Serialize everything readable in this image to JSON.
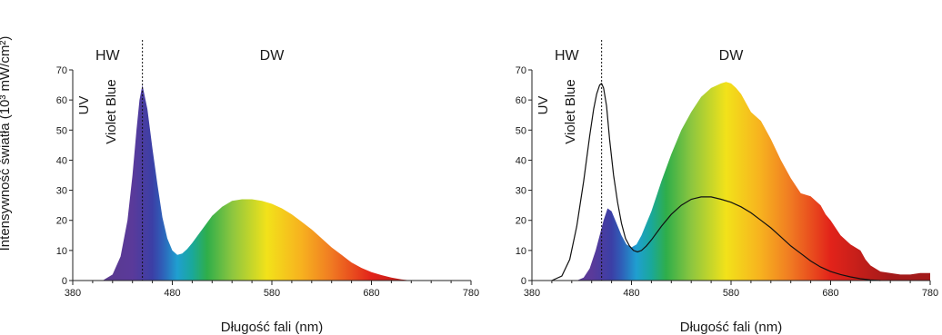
{
  "colors": {
    "spectrum": [
      "#5b3a8e",
      "#5a3a9a",
      "#3b3fa6",
      "#2f5fb8",
      "#1f9fd0",
      "#1aa89a",
      "#2fae4a",
      "#8cc63f",
      "#f2e21a",
      "#f7b11f",
      "#f07a22",
      "#e2231a",
      "#a31a1a"
    ],
    "axis": "#222222",
    "curve": "#111111"
  },
  "ylabel": "Intensywność światła (10³ mW/cm²)",
  "chart_data": [
    {
      "type": "area",
      "xlabel": "Długość fali (nm)",
      "xlim": [
        380,
        780
      ],
      "ylim": [
        0,
        70
      ],
      "xticks": [
        380,
        480,
        580,
        680,
        780
      ],
      "yticks": [
        0,
        10,
        20,
        30,
        40,
        50,
        60,
        70
      ],
      "regions": [
        {
          "label": "HW"
        },
        {
          "label": "DW"
        }
      ],
      "vertical_labels": [
        "UV",
        "Violet Blue"
      ],
      "marker_line_x": 450,
      "series": [
        {
          "x": [
            410,
            420,
            428,
            435,
            440,
            444,
            447,
            450,
            455,
            460,
            465,
            470,
            475,
            480,
            485,
            490,
            495,
            500,
            510,
            520,
            530,
            540,
            550,
            560,
            570,
            580,
            590,
            600,
            610,
            620,
            630,
            640,
            650,
            660,
            670,
            680,
            690,
            700,
            710,
            720
          ],
          "y": [
            0,
            2,
            8,
            20,
            35,
            50,
            60,
            65,
            57,
            44,
            32,
            21,
            14,
            10,
            8.5,
            9,
            10.5,
            12.5,
            17,
            21.5,
            24.5,
            26.5,
            27,
            27,
            26.5,
            25.5,
            24,
            22,
            19.5,
            17,
            14,
            11,
            8.5,
            6,
            4.2,
            2.8,
            1.8,
            1,
            0.4,
            0
          ]
        }
      ]
    },
    {
      "type": "area",
      "xlabel": "Długość fali (nm)",
      "xlim": [
        380,
        780
      ],
      "ylim": [
        0,
        70
      ],
      "xticks": [
        380,
        480,
        580,
        680,
        780
      ],
      "yticks": [
        0,
        10,
        20,
        30,
        40,
        50,
        60,
        70
      ],
      "regions": [
        {
          "label": "HW"
        },
        {
          "label": "DW"
        }
      ],
      "vertical_labels": [
        "UV",
        "Violet Blue"
      ],
      "marker_line_x": 450,
      "series": [
        {
          "x": [
            425,
            432,
            438,
            444,
            448,
            452,
            456,
            460,
            465,
            470,
            475,
            480,
            485,
            490,
            495,
            500,
            505,
            510,
            520,
            530,
            540,
            550,
            560,
            570,
            575,
            580,
            585,
            590,
            600,
            610,
            620,
            630,
            640,
            650,
            660,
            670,
            675,
            680,
            690,
            700,
            710,
            715,
            720,
            730,
            740,
            750,
            760,
            770,
            780
          ],
          "y": [
            0,
            1,
            4,
            10,
            15,
            20,
            24,
            23,
            19,
            15,
            12,
            11,
            12,
            15,
            19,
            23,
            28,
            33,
            42,
            50,
            56,
            61,
            64,
            65.5,
            66,
            65.5,
            64,
            62,
            56,
            53,
            47,
            40,
            34,
            29,
            28,
            25,
            22,
            20,
            15,
            12,
            10,
            7,
            5,
            3,
            2.5,
            2,
            2,
            2.5,
            2.5
          ]
        },
        {
          "x": [
            400,
            410,
            418,
            425,
            432,
            438,
            442,
            445,
            448,
            450,
            452,
            455,
            458,
            462,
            466,
            470,
            474,
            478,
            482,
            486,
            490,
            495,
            500,
            510,
            520,
            530,
            540,
            550,
            560,
            570,
            580,
            590,
            600,
            610,
            620,
            630,
            640,
            650,
            660,
            670,
            680,
            690,
            700,
            710,
            720,
            730
          ],
          "y": [
            0,
            1.5,
            7,
            18,
            33,
            48,
            57,
            62,
            65,
            65.5,
            64,
            58,
            47,
            35,
            26,
            19,
            14,
            11.5,
            10,
            9.5,
            10,
            11.5,
            13.5,
            18,
            22,
            25,
            27,
            27.8,
            27.8,
            27,
            26,
            24.5,
            22.5,
            20,
            17.5,
            14.5,
            11.5,
            9,
            6.5,
            4.5,
            3,
            2,
            1.2,
            0.6,
            0.2,
            0
          ]
        }
      ]
    }
  ]
}
